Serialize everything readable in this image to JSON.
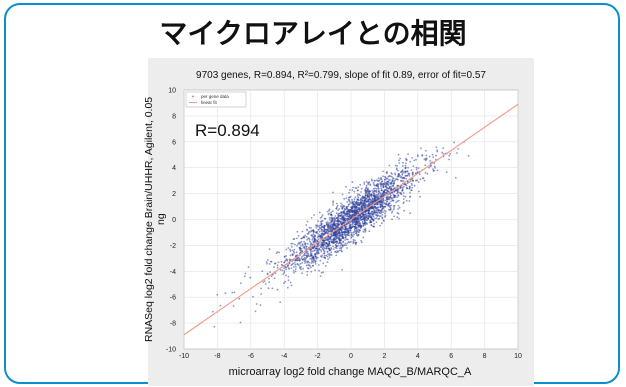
{
  "header": {
    "title": "マイクロアレイとの相関"
  },
  "colors": {
    "border": "#0a90c8",
    "points": "#2f3f9a",
    "fit": "#f09a8a"
  },
  "chart_data": {
    "type": "scatter",
    "title": "9703 genes, R=0.894, R²=0.799, slope of fit 0.89, error of fit=0.57",
    "xlabel": "microarray log2 fold change MAQC_B/MARQC_A",
    "ylabel": "RNASeq log2 fold change Brain/UHHR, Agilent, 0.05 ng",
    "xlim": [
      -10,
      10
    ],
    "ylim": [
      -10,
      10
    ],
    "x_ticks": [
      "-10",
      "-8",
      "-6",
      "-4",
      "-2",
      "0",
      "2",
      "4",
      "6",
      "8",
      "10"
    ],
    "y_ticks": [
      "10",
      "8",
      "6",
      "4",
      "2",
      "0",
      "-2",
      "-4",
      "-6",
      "-8",
      "-10"
    ],
    "grid": true,
    "legend": {
      "placement": "top-left",
      "entries": [
        "per gene data",
        "linear fit"
      ]
    },
    "annotation": "R=0.894",
    "fit": {
      "slope": 0.89,
      "intercept": 0
    },
    "n_points": 9703,
    "series": [
      {
        "name": "per gene data",
        "kind": "scatter"
      },
      {
        "name": "linear fit",
        "kind": "line"
      }
    ]
  }
}
